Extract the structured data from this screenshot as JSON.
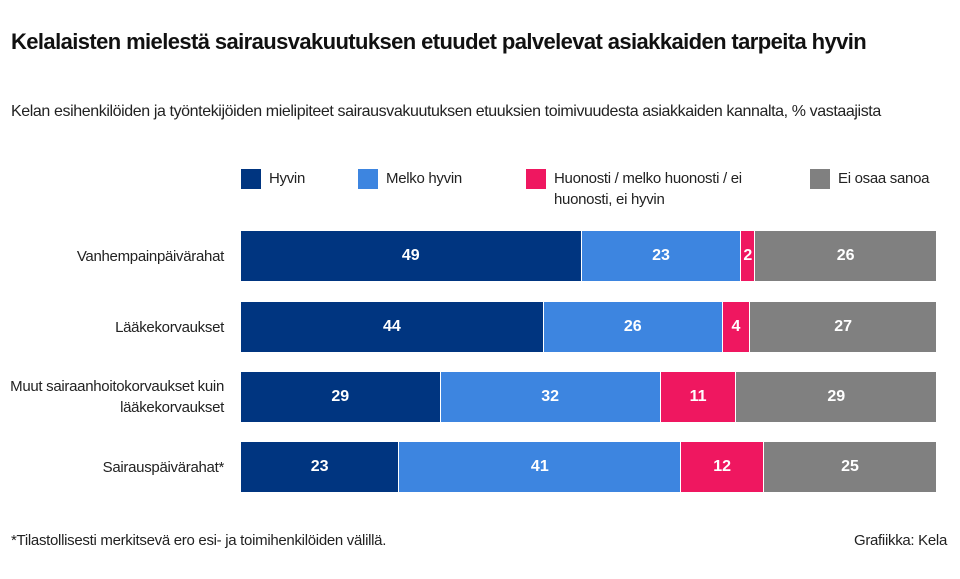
{
  "chart_data": {
    "type": "bar",
    "orientation": "horizontal",
    "stacked": true,
    "title": "Kelalaisten mielestä sairausvakuutuksen etuudet palvelevat asiakkaiden tarpeita hyvin",
    "subtitle": "Kelan esihenkilöiden ja työntekijöiden mielipiteet sairausvakuutuksen etuuksien toimivuudesta asiakkaiden kannalta, % vastaajista",
    "categories": [
      "Vanhempainpäivärahat",
      "Lääkekorvaukset",
      "Muut sairaanhoitokorvaukset kuin lääkekorvaukset",
      "Sairauspäivärahat*"
    ],
    "series": [
      {
        "name": "Hyvin",
        "color": "#003580",
        "values": [
          49,
          44,
          29,
          23
        ]
      },
      {
        "name": "Melko hyvin",
        "color": "#3d85e0",
        "values": [
          23,
          26,
          32,
          41
        ]
      },
      {
        "name": "Huonosti / melko huonosti / ei huonosti, ei hyvin",
        "color": "#ef1760",
        "values": [
          2,
          4,
          11,
          12
        ]
      },
      {
        "name": "Ei osaa sanoa",
        "color": "#808080",
        "values": [
          26,
          27,
          29,
          25
        ]
      }
    ],
    "legend": "top",
    "grid": false,
    "footnote": "*Tilastollisesti merkitsevä ero esi- ja toimihenkilöiden välillä.",
    "credit": "Grafiikka: Kela"
  }
}
